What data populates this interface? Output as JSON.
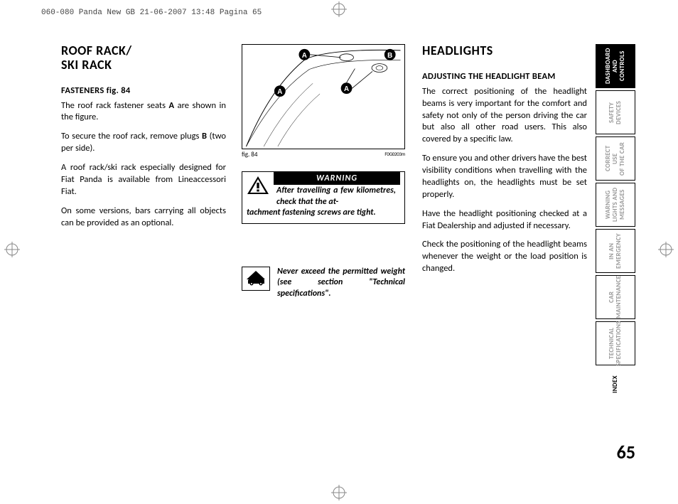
{
  "print_header": "060-080 Panda New GB  21-06-2007  13:48  Pagina 65",
  "col1": {
    "title": "ROOF RACK/\nSKI RACK",
    "sub": "FASTENERS fig. 84",
    "p1a": "The roof rack fastener seats ",
    "p1b": "A",
    "p1c": " are shown in the figure.",
    "p2a": "To secure the roof rack, remove plugs ",
    "p2b": "B",
    "p2c": " (two per side).",
    "p3": "A roof rack/ski rack especially designed for Fiat Panda is available from Lineaccessori Fiat.",
    "p4": "On some versions, bars carrying all objects can be provided as an optional."
  },
  "figure": {
    "caption": "fig. 84",
    "ref": "F0G0203m",
    "labels": {
      "A": "A",
      "B": "B"
    }
  },
  "warning": {
    "title": "WARNING",
    "text": "After travelling a few kilometres, check that the attachment fastening screws are tight."
  },
  "note": {
    "text": "Never exceed the permitted weight (see section \"Technical specifications\"."
  },
  "col3": {
    "title": "HEADLIGHTS",
    "sub": "ADJUSTING THE HEADLIGHT BEAM",
    "p1": "The correct positioning of the headlight beams is very important for the comfort and safety not only of the person driving the car but also all other road users. This also covered by a specific law.",
    "p2": "To ensure you and other drivers have the best visibility conditions when travelling with the headlights on, the headlights must be set properly.",
    "p3": "Have the headlight positioning checked at a Fiat Dealership and adjusted if necessary.",
    "p4": "Check the positioning of the headlight beams whenever the weight or the load position is changed."
  },
  "tabs": [
    {
      "label": "DASHBOARD\nAND CONTROLS",
      "active": true
    },
    {
      "label": "SAFETY\nDEVICES",
      "active": false
    },
    {
      "label": "CORRECT USE\nOF THE CAR",
      "active": false
    },
    {
      "label": "WARNING\nLIGHTS AND\nMESSAGES",
      "active": false
    },
    {
      "label": "IN AN\nEMERGENCY",
      "active": false
    },
    {
      "label": "CAR\nMAINTENANCE",
      "active": false
    },
    {
      "label": "TECHNICAL\nSPECIFICATIONS",
      "active": false
    },
    {
      "label": "INDEX",
      "active": false,
      "plain": true
    }
  ],
  "page_number": "65"
}
